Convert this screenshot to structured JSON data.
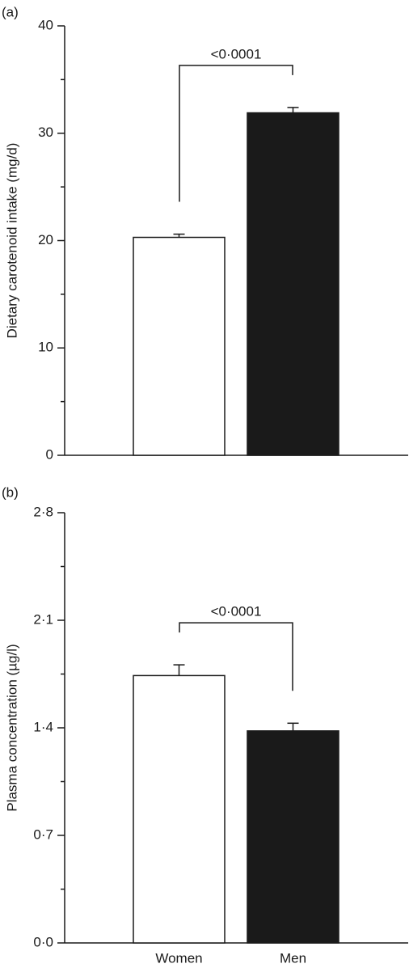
{
  "chart_data": [
    {
      "type": "bar",
      "panel_label": "(a)",
      "y_label": "Dietary carotenoid intake (mg/d)",
      "categories": [
        null,
        null
      ],
      "values": [
        20.3,
        31.9
      ],
      "errors": [
        0.3,
        0.5
      ],
      "colors": [
        "#ffffff",
        "#1a1a1a"
      ],
      "ylim": [
        0,
        40
      ],
      "yticks": [
        0,
        10,
        20,
        30,
        40
      ],
      "minor_yticks": [
        5,
        15,
        25,
        35
      ],
      "annotation": "<0·0001"
    },
    {
      "type": "bar",
      "panel_label": "(b)",
      "y_label": "Plasma concentration (µg/l)",
      "categories": [
        "Women",
        "Men"
      ],
      "values": [
        1.74,
        1.38
      ],
      "errors": [
        0.07,
        0.05
      ],
      "colors": [
        "#ffffff",
        "#1a1a1a"
      ],
      "ylim": [
        0,
        2.8
      ],
      "yticks": [
        {
          "value": 0,
          "label": "0·0"
        },
        {
          "value": 0.7,
          "label": "0·7"
        },
        {
          "value": 1.4,
          "label": "1·4"
        },
        {
          "value": 2.1,
          "label": "2·1"
        },
        {
          "value": 2.8,
          "label": "2·8"
        }
      ],
      "minor_yticks": [
        0.35,
        1.05,
        1.75,
        2.45
      ],
      "annotation": "<0·0001"
    }
  ]
}
